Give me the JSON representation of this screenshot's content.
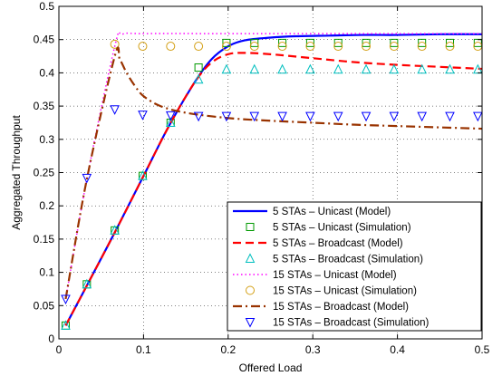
{
  "chart_data": {
    "type": "line",
    "xlabel": "Offered Load",
    "ylabel": "Aggregated Throughput",
    "xlim": [
      0,
      0.5
    ],
    "ylim": [
      0,
      0.5
    ],
    "xticks": [
      0,
      0.1,
      0.2,
      0.3,
      0.4,
      0.5
    ],
    "xtick_labels": [
      "0",
      "0.1",
      "0.2",
      "0.3",
      "0.4",
      "0.5"
    ],
    "yticks": [
      0,
      0.05,
      0.1,
      0.15,
      0.2,
      0.25,
      0.3,
      0.35,
      0.4,
      0.45,
      0.5
    ],
    "ytick_labels": [
      "0",
      "0.05",
      "0.1",
      "0.15",
      "0.2",
      "0.25",
      "0.3",
      "0.35",
      "0.4",
      "0.45",
      "0.5"
    ],
    "grid": true,
    "legend_position": "bottom-right",
    "series": [
      {
        "name": "5 STAs – Unicast (Model)",
        "color": "#0000ff",
        "style": "solid",
        "marker": "none",
        "x": [
          0.008,
          0.033,
          0.066,
          0.1,
          0.13,
          0.16,
          0.18,
          0.2,
          0.22,
          0.25,
          0.28,
          0.32,
          0.36,
          0.4,
          0.45,
          0.5
        ],
        "y": [
          0.02,
          0.08,
          0.16,
          0.245,
          0.32,
          0.385,
          0.42,
          0.44,
          0.449,
          0.453,
          0.455,
          0.456,
          0.457,
          0.457,
          0.458,
          0.458
        ]
      },
      {
        "name": "5 STAs – Unicast (Simulation)",
        "color": "#009900",
        "style": "none",
        "marker": "square",
        "x": [
          0.008,
          0.033,
          0.066,
          0.099,
          0.132,
          0.165,
          0.198,
          0.231,
          0.264,
          0.297,
          0.33,
          0.363,
          0.396,
          0.429,
          0.462,
          0.495
        ],
        "y": [
          0.02,
          0.082,
          0.163,
          0.245,
          0.325,
          0.408,
          0.445,
          0.445,
          0.445,
          0.445,
          0.445,
          0.445,
          0.445,
          0.445,
          0.445,
          0.445
        ]
      },
      {
        "name": "5 STAs – Broadcast (Model)",
        "color": "#ff0000",
        "style": "dashed",
        "marker": "none",
        "x": [
          0.008,
          0.033,
          0.066,
          0.1,
          0.13,
          0.16,
          0.18,
          0.2,
          0.22,
          0.25,
          0.3,
          0.35,
          0.4,
          0.45,
          0.5
        ],
        "y": [
          0.02,
          0.08,
          0.16,
          0.245,
          0.32,
          0.385,
          0.415,
          0.428,
          0.43,
          0.428,
          0.422,
          0.416,
          0.412,
          0.409,
          0.406
        ]
      },
      {
        "name": "5 STAs – Broadcast (Simulation)",
        "color": "#00bfbf",
        "style": "none",
        "marker": "triangle-up",
        "x": [
          0.008,
          0.033,
          0.066,
          0.099,
          0.132,
          0.165,
          0.198,
          0.231,
          0.264,
          0.297,
          0.33,
          0.363,
          0.396,
          0.429,
          0.462,
          0.495
        ],
        "y": [
          0.02,
          0.082,
          0.163,
          0.245,
          0.325,
          0.39,
          0.405,
          0.405,
          0.405,
          0.405,
          0.405,
          0.405,
          0.405,
          0.405,
          0.405,
          0.405
        ]
      },
      {
        "name": "15 STAs – Unicast (Model)",
        "color": "#ff00ff",
        "style": "dotted",
        "marker": "none",
        "x": [
          0.008,
          0.033,
          0.066,
          0.075,
          0.1,
          0.2,
          0.3,
          0.4,
          0.5
        ],
        "y": [
          0.06,
          0.24,
          0.44,
          0.458,
          0.459,
          0.459,
          0.459,
          0.459,
          0.459
        ]
      },
      {
        "name": "15 STAs – Unicast (Simulation)",
        "color": "#d4a017",
        "style": "none",
        "marker": "circle",
        "x": [
          0.066,
          0.099,
          0.132,
          0.165,
          0.198,
          0.231,
          0.264,
          0.297,
          0.33,
          0.363,
          0.396,
          0.429,
          0.462,
          0.495
        ],
        "y": [
          0.443,
          0.44,
          0.44,
          0.44,
          0.44,
          0.44,
          0.44,
          0.44,
          0.44,
          0.44,
          0.44,
          0.44,
          0.44,
          0.44
        ]
      },
      {
        "name": "15 STAs – Broadcast (Model)",
        "color": "#993300",
        "style": "dashdot",
        "marker": "none",
        "x": [
          0.008,
          0.033,
          0.066,
          0.072,
          0.08,
          0.09,
          0.1,
          0.12,
          0.15,
          0.2,
          0.25,
          0.3,
          0.35,
          0.4,
          0.45,
          0.5
        ],
        "y": [
          0.06,
          0.24,
          0.425,
          0.42,
          0.4,
          0.38,
          0.365,
          0.35,
          0.34,
          0.332,
          0.328,
          0.325,
          0.322,
          0.32,
          0.318,
          0.316
        ]
      },
      {
        "name": "15 STAs – Broadcast (Simulation)",
        "color": "#0000ff",
        "style": "none",
        "marker": "triangle-down",
        "x": [
          0.008,
          0.033,
          0.066,
          0.099,
          0.132,
          0.165,
          0.198,
          0.231,
          0.264,
          0.297,
          0.33,
          0.363,
          0.396,
          0.429,
          0.462,
          0.495
        ],
        "y": [
          0.06,
          0.242,
          0.345,
          0.337,
          0.336,
          0.335,
          0.335,
          0.335,
          0.335,
          0.335,
          0.335,
          0.335,
          0.335,
          0.335,
          0.335,
          0.335
        ]
      }
    ]
  }
}
